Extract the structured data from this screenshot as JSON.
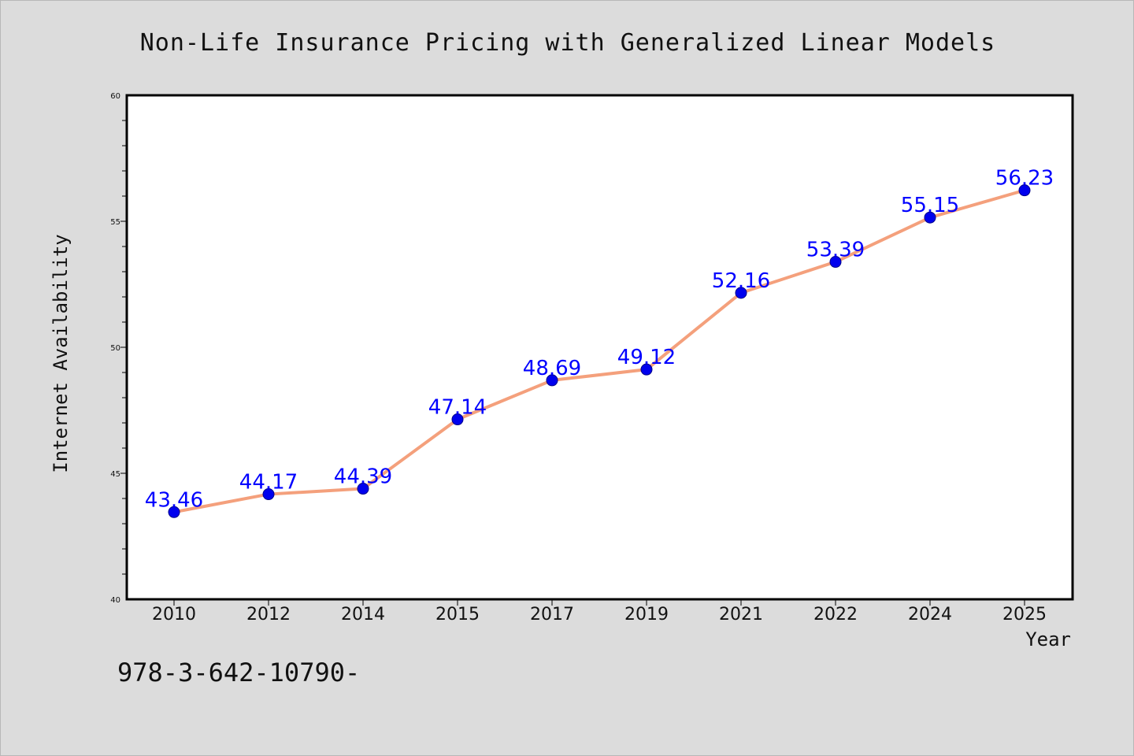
{
  "chart_data": {
    "type": "line",
    "title": "Non-Life Insurance Pricing with Generalized Linear Models",
    "xlabel": "Year",
    "ylabel": "Internet Availability",
    "categories": [
      "2010",
      "2012",
      "2014",
      "2015",
      "2017",
      "2019",
      "2021",
      "2022",
      "2024",
      "2025"
    ],
    "series": [
      {
        "values": [
          43.46,
          44.17,
          44.39,
          47.14,
          48.69,
          49.12,
          52.16,
          53.39,
          55.15,
          56.23
        ],
        "data_labels": [
          "43.46",
          "44.17",
          "44.39",
          "47.14",
          "48.69",
          "49.12",
          "52.16",
          "53.39",
          "55.15",
          "56.23"
        ]
      }
    ],
    "ylim": [
      40,
      60
    ],
    "yticks": [
      "40",
      "45",
      "50",
      "55",
      "60"
    ],
    "grid": false,
    "line_color": "#f4a07c",
    "marker_color": "#0000ee",
    "label_color": "#0000ff"
  },
  "footer": {
    "text": "978-3-642-10790-"
  }
}
